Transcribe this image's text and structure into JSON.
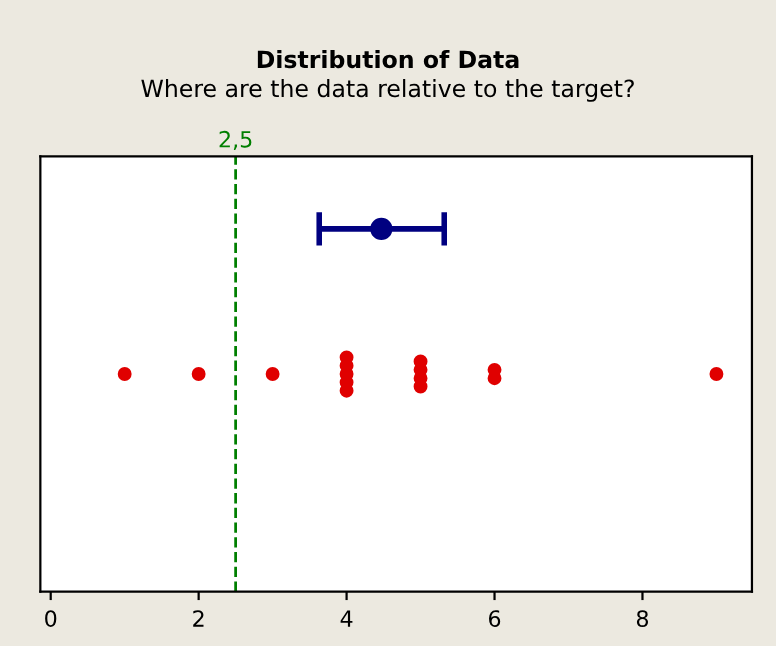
{
  "chart_data": {
    "type": "scatter",
    "title": "Distribution of Data",
    "subtitle": "Where are the data relative to the target?",
    "orientation": "horizontal",
    "categories": [
      null,
      null,
      null
    ],
    "tick_labels": "x",
    "grid": false,
    "legend": false,
    "marker": "circle",
    "xlim": [
      -0.14,
      9.48
    ],
    "xticks": [
      0,
      2,
      4,
      6,
      8
    ],
    "series": [
      {
        "color": "#000080",
        "values": [
          4.47,
          null,
          null
        ],
        "errors": [
          [
            3.63,
            5.32
          ],
          null,
          null
        ]
      },
      {
        "color": "#e00000",
        "values": [
          null,
          1,
          null
        ]
      },
      {
        "color": "#e00000",
        "values": [
          null,
          2,
          null
        ]
      },
      {
        "color": "#e00000",
        "values": [
          null,
          3,
          null
        ]
      },
      {
        "color": "#e00000",
        "values": [
          null,
          4,
          null
        ]
      },
      {
        "color": "#e00000",
        "values": [
          null,
          4,
          null
        ]
      },
      {
        "color": "#e00000",
        "values": [
          null,
          4,
          null
        ]
      },
      {
        "color": "#e00000",
        "values": [
          null,
          4,
          null
        ]
      },
      {
        "color": "#e00000",
        "values": [
          null,
          4,
          null
        ]
      },
      {
        "color": "#e00000",
        "values": [
          null,
          5,
          null
        ]
      },
      {
        "color": "#e00000",
        "values": [
          null,
          5,
          null
        ]
      },
      {
        "color": "#e00000",
        "values": [
          null,
          5,
          null
        ]
      },
      {
        "color": "#e00000",
        "values": [
          null,
          5,
          null
        ]
      },
      {
        "color": "#e00000",
        "values": [
          null,
          6,
          null
        ]
      },
      {
        "color": "#e00000",
        "values": [
          null,
          6,
          null
        ]
      },
      {
        "color": "#e00000",
        "values": [
          null,
          9,
          null
        ]
      }
    ],
    "ref_lines": [
      {
        "axis": "x",
        "value": 2.5,
        "label": "2,5",
        "color": "#007f00",
        "line_style": "dashed"
      }
    ]
  }
}
